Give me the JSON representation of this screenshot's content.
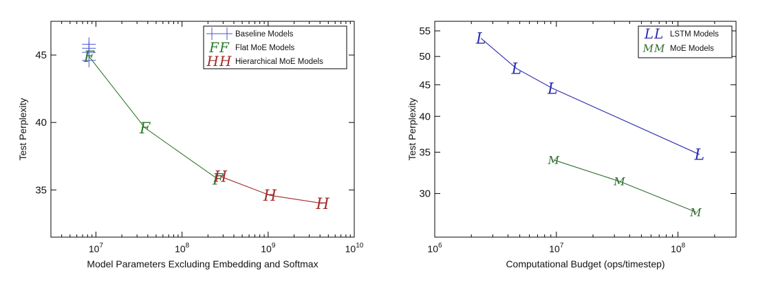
{
  "chart_data": [
    {
      "type": "scatter",
      "title": "",
      "xlabel": "Model Parameters Excluding Embedding and Softmax",
      "ylabel": "Test Perplexity",
      "xscale": "log",
      "xlim": [
        3000000,
        10000000000
      ],
      "ylim": [
        31.5,
        47.5
      ],
      "xticks": [
        {
          "value": 10000000,
          "base": "10",
          "exp": "7"
        },
        {
          "value": 100000000,
          "base": "10",
          "exp": "8"
        },
        {
          "value": 1000000000,
          "base": "10",
          "exp": "9"
        },
        {
          "value": 10000000000,
          "base": "10",
          "exp": "10"
        }
      ],
      "yticks": [
        {
          "value": 35,
          "label": "35"
        },
        {
          "value": 40,
          "label": "40"
        },
        {
          "value": 45,
          "label": "45"
        }
      ],
      "grid": false,
      "legend_position": "top-right",
      "series": [
        {
          "name": "Baseline Models",
          "marker": "+",
          "color": "#4a50d8",
          "line": false,
          "x": [
            8300000,
            8300000,
            8300000,
            8300000
          ],
          "y": [
            45.8,
            45.5,
            45.2,
            44.6
          ]
        },
        {
          "name": "Flat MoE Models",
          "marker": "F",
          "color": "#2e7a2e",
          "line": true,
          "x": [
            8300000,
            37000000,
            260000000
          ],
          "y": [
            44.9,
            39.6,
            35.8
          ]
        },
        {
          "name": "Hierarchical MoE Models",
          "marker": "H",
          "color": "#a22a2a",
          "line": true,
          "x": [
            280000000,
            1050000000,
            4300000000
          ],
          "y": [
            36.0,
            34.6,
            34.0
          ]
        }
      ]
    },
    {
      "type": "line",
      "title": "",
      "xlabel": "Computational Budget (ops/timestep)",
      "ylabel": "Test Perplexity",
      "xscale": "log",
      "yscale": "log",
      "xlim": [
        1000000,
        300000000
      ],
      "ylim": [
        25.5,
        57
      ],
      "xticks": [
        {
          "value": 1000000,
          "base": "10",
          "exp": "6"
        },
        {
          "value": 10000000,
          "base": "10",
          "exp": "7"
        },
        {
          "value": 100000000,
          "base": "10",
          "exp": "8"
        }
      ],
      "yticks": [
        {
          "value": 30,
          "label": "30"
        },
        {
          "value": 35,
          "label": "35"
        },
        {
          "value": 40,
          "label": "40"
        },
        {
          "value": 45,
          "label": "45"
        },
        {
          "value": 50,
          "label": "50"
        },
        {
          "value": 55,
          "label": "55"
        }
      ],
      "grid": false,
      "legend_position": "top-right",
      "series": [
        {
          "name": "LSTM Models",
          "marker": "L",
          "color": "#2a2ab0",
          "line": true,
          "x": [
            2400000,
            4700000,
            9300000,
            150000000
          ],
          "y": [
            53.5,
            47.8,
            44.4,
            34.7
          ]
        },
        {
          "name": "MoE Models",
          "marker": "M",
          "color": "#2e6b2e",
          "line": true,
          "x": [
            9500000,
            33000000,
            140000000
          ],
          "y": [
            34.0,
            31.4,
            28.0
          ]
        }
      ]
    }
  ]
}
